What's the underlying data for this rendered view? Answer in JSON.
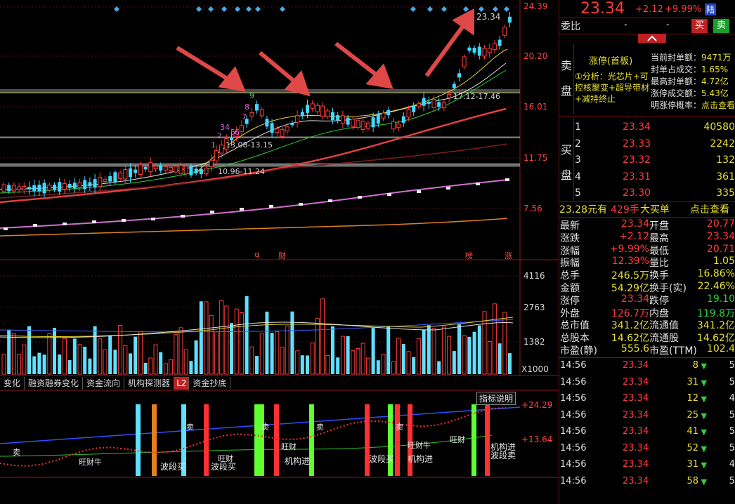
{
  "price_axis": [
    "24.39",
    "20.20",
    "16.01",
    "11.75",
    "7.56"
  ],
  "annotations": {
    "peak_price": "23.34",
    "range1": "17.12-17.46",
    "range2": "13.08-13.15",
    "range3": "10.96-11.24",
    "markers": [
      "q",
      "财",
      "榜",
      "涨"
    ],
    "td_counts": [
      "1",
      "2",
      "3",
      "4",
      "5",
      "6",
      "7",
      "8",
      "9"
    ]
  },
  "volume_axis": [
    "4116",
    "2763",
    "1382",
    "X1000"
  ],
  "indicator_tabs": [
    "变化",
    "融资融券变化",
    "资金流向",
    "机构探测器",
    "L2",
    "资金抄底"
  ],
  "indicator": {
    "help_label": "指标说明",
    "axis": [
      "+24.29",
      "+13.64"
    ],
    "labels": [
      "波段买",
      "波段买",
      "机构进",
      "波段买",
      "机构进",
      "机构进",
      "波段卖",
      "旺财",
      "旺财",
      "旺财",
      "旺财牛",
      "旺财牛",
      "卖",
      "卖",
      "卖",
      "卖",
      "卖"
    ]
  },
  "header": {
    "price": "23.34",
    "change": "+2.12",
    "pct": "+9.99%",
    "badge": "陆"
  },
  "order_ratio": {
    "label": "委比",
    "val1": "-",
    "val2": "-",
    "buy_btn": "买",
    "sell_btn": "卖"
  },
  "sell_side": {
    "label1": "卖",
    "label2": "盘",
    "limit_up": "涨停(首板)",
    "analysis": "①分析：光芯片+可控核聚变+超导带材+减持终止",
    "stats": [
      {
        "k": "当前封单额：",
        "v": "9471万"
      },
      {
        "k": "封单占成交：",
        "v": "1.65%"
      },
      {
        "k": "最高封单额：",
        "v": "4.72亿"
      },
      {
        "k": "涨停成交额：",
        "v": "5.43亿"
      },
      {
        "k": "明涨停概率：",
        "v": "点击查看"
      }
    ]
  },
  "buy_side": {
    "label1": "买",
    "label2": "盘",
    "rows": [
      {
        "n": "1",
        "p": "23.34",
        "v": "40580"
      },
      {
        "n": "2",
        "p": "23.33",
        "v": "2242"
      },
      {
        "n": "3",
        "p": "23.32",
        "v": "132"
      },
      {
        "n": "4",
        "p": "23.31",
        "v": "361"
      },
      {
        "n": "5",
        "p": "23.30",
        "v": "335"
      }
    ]
  },
  "big_order": {
    "price": "23.28元有",
    "qty": "429手",
    "label": "大买单",
    "link": "点击查看"
  },
  "quote_stats": [
    {
      "k1": "最新",
      "v1": "23.34",
      "k2": "开盘",
      "v2": "20.77"
    },
    {
      "k1": "涨跌",
      "v1": "+2.12",
      "k2": "最高",
      "v2": "23.34"
    },
    {
      "k1": "涨幅",
      "v1": "+9.99%",
      "k2": "最低",
      "v2": "20.71"
    },
    {
      "k1": "振幅",
      "v1": "12.39%",
      "k2": "量比",
      "v2": "1.05"
    },
    {
      "k1": "总手",
      "v1": "246.5万",
      "k2": "换手",
      "v2": "16.86%"
    },
    {
      "k1": "金额",
      "v1": "54.29亿",
      "k2": "换手(实)",
      "v2": "22.46%"
    },
    {
      "k1": "涨停",
      "v1": "23.34",
      "k2": "跌停",
      "v2": "19.10"
    },
    {
      "k1": "外盘",
      "v1": "126.7万",
      "k2": "内盘",
      "v2": "119.8万"
    },
    {
      "k1": "总市值",
      "v1": "341.2亿",
      "k2": "流通值",
      "v2": "341.2亿"
    },
    {
      "k1": "总股本",
      "v1": "14.62亿",
      "k2": "流通股",
      "v2": "14.62亿"
    },
    {
      "k1": "市盈(静)",
      "v1": "555.6",
      "k2": "市盈(TTM)",
      "v2": "102.4"
    }
  ],
  "ticks": [
    {
      "t": "14:56",
      "p": "23.34",
      "v": "8",
      "x": "5"
    },
    {
      "t": "14:56",
      "p": "23.34",
      "v": "31",
      "x": "5"
    },
    {
      "t": "14:56",
      "p": "23.34",
      "v": "12",
      "x": "4"
    },
    {
      "t": "14:56",
      "p": "23.34",
      "v": "25",
      "x": "5"
    },
    {
      "t": "14:56",
      "p": "23.34",
      "v": "41",
      "x": "5"
    },
    {
      "t": "14:56",
      "p": "23.34",
      "v": "52",
      "x": "5"
    },
    {
      "t": "14:56",
      "p": "23.34",
      "v": "31",
      "x": "4"
    },
    {
      "t": "14:56",
      "p": "23.34",
      "v": "58",
      "x": "5"
    }
  ]
}
